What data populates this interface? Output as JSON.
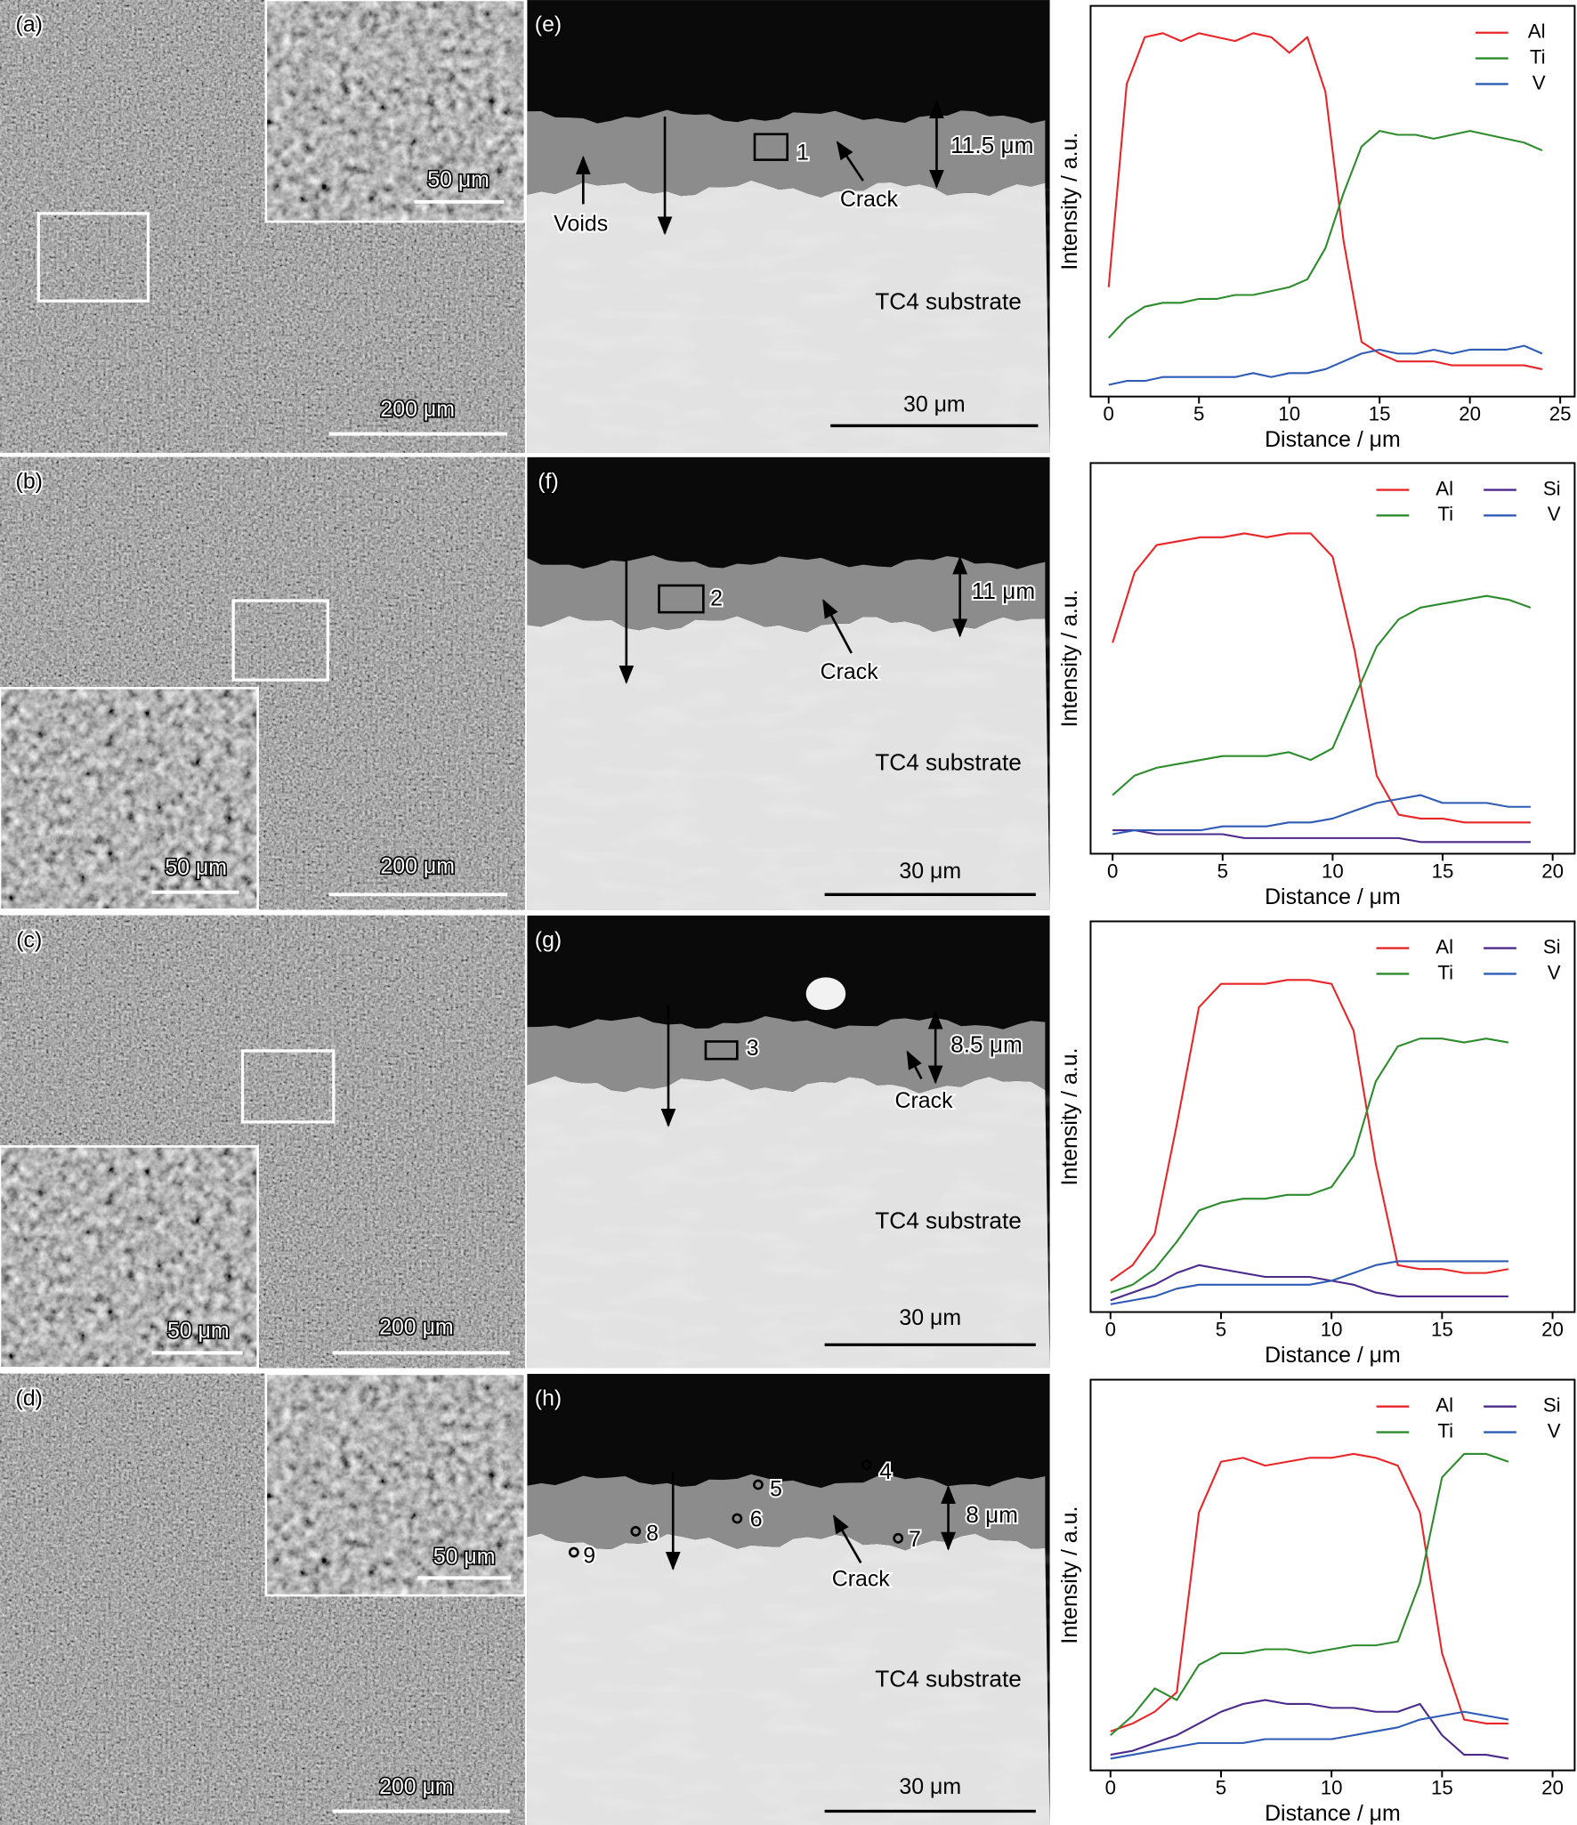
{
  "chart_data": [
    {
      "type": "line",
      "x_label": "Distance / μm",
      "y_label": "Intensity / a.u.",
      "xlim": [
        -1,
        25.8
      ],
      "xticks": [
        0,
        5,
        10,
        15,
        20,
        25
      ],
      "ylim": [
        0,
        100
      ],
      "legend": "upper right",
      "x": [
        0,
        1,
        2,
        3,
        4,
        5,
        6,
        7,
        8,
        9,
        10,
        11,
        12,
        13,
        14,
        15,
        16,
        17,
        18,
        19,
        20,
        21,
        22,
        23,
        24
      ],
      "series": [
        {
          "name": "Al",
          "color": "#e8262a",
          "values": [
            28,
            80,
            92,
            93,
            91,
            93,
            92,
            91,
            93,
            92,
            88,
            92,
            78,
            40,
            14,
            11,
            9,
            9,
            9,
            8,
            8,
            8,
            8,
            8,
            7
          ]
        },
        {
          "name": "Ti",
          "color": "#2e8b2e",
          "values": [
            15,
            20,
            23,
            24,
            24,
            25,
            25,
            26,
            26,
            27,
            28,
            30,
            38,
            52,
            64,
            68,
            67,
            67,
            66,
            67,
            68,
            67,
            66,
            65,
            63
          ]
        },
        {
          "name": "V",
          "color": "#2f5bb5",
          "values": [
            3,
            4,
            4,
            5,
            5,
            5,
            5,
            5,
            6,
            5,
            6,
            6,
            7,
            9,
            11,
            12,
            11,
            11,
            12,
            11,
            12,
            12,
            12,
            13,
            11
          ]
        }
      ]
    },
    {
      "type": "line",
      "x_label": "Distance / μm",
      "y_label": "Intensity / a.u.",
      "xlim": [
        -1,
        21
      ],
      "xticks": [
        0,
        5,
        10,
        15,
        20
      ],
      "ylim": [
        0,
        100
      ],
      "legend": "upper right",
      "x": [
        0,
        1,
        2,
        3,
        4,
        5,
        6,
        7,
        8,
        9,
        10,
        11,
        12,
        13,
        14,
        15,
        16,
        17,
        18,
        19
      ],
      "series": [
        {
          "name": "Al",
          "color": "#e8262a",
          "values": [
            54,
            72,
            79,
            80,
            81,
            81,
            82,
            81,
            82,
            82,
            76,
            52,
            20,
            10,
            9,
            9,
            8,
            8,
            8,
            8
          ]
        },
        {
          "name": "Ti",
          "color": "#2e8b2e",
          "values": [
            15,
            20,
            22,
            23,
            24,
            25,
            25,
            25,
            26,
            24,
            27,
            40,
            53,
            60,
            63,
            64,
            65,
            66,
            65,
            63
          ]
        },
        {
          "name": "Si",
          "color": "#4b2a8c",
          "values": [
            6,
            6,
            5,
            5,
            5,
            5,
            4,
            4,
            4,
            4,
            4,
            4,
            4,
            4,
            3,
            3,
            3,
            3,
            3,
            3
          ]
        },
        {
          "name": "V",
          "color": "#2f5bb5",
          "values": [
            5,
            6,
            6,
            6,
            6,
            7,
            7,
            7,
            8,
            8,
            9,
            11,
            13,
            14,
            15,
            13,
            13,
            13,
            12,
            12
          ]
        }
      ]
    },
    {
      "type": "line",
      "x_label": "Distance / μm",
      "y_label": "Intensity / a.u.",
      "xlim": [
        -0.9,
        21
      ],
      "xticks": [
        0,
        5,
        10,
        15,
        20
      ],
      "ylim": [
        0,
        100
      ],
      "legend": "upper right",
      "x": [
        0,
        1,
        2,
        3,
        4,
        5,
        6,
        7,
        8,
        9,
        10,
        11,
        12,
        13,
        14,
        15,
        16,
        17,
        18
      ],
      "series": [
        {
          "name": "Al",
          "color": "#e8262a",
          "values": [
            8,
            12,
            20,
            48,
            78,
            84,
            84,
            84,
            85,
            85,
            84,
            72,
            38,
            12,
            11,
            11,
            10,
            10,
            11
          ]
        },
        {
          "name": "Ti",
          "color": "#2e8b2e",
          "values": [
            5,
            7,
            11,
            18,
            26,
            28,
            29,
            29,
            30,
            30,
            32,
            40,
            59,
            68,
            70,
            70,
            69,
            70,
            69
          ]
        },
        {
          "name": "Si",
          "color": "#4b2a8c",
          "values": [
            3,
            5,
            7,
            10,
            12,
            11,
            10,
            9,
            9,
            9,
            8,
            7,
            5,
            4,
            4,
            4,
            4,
            4,
            4
          ]
        },
        {
          "name": "V",
          "color": "#2f5bb5",
          "values": [
            2,
            3,
            4,
            6,
            7,
            7,
            7,
            7,
            7,
            7,
            8,
            10,
            12,
            13,
            13,
            13,
            13,
            13,
            13
          ]
        }
      ]
    },
    {
      "type": "line",
      "x_label": "Distance / μm",
      "y_label": "Intensity / a.u.",
      "xlim": [
        -0.9,
        21
      ],
      "xticks": [
        0,
        5,
        10,
        15,
        20
      ],
      "ylim": [
        0,
        100
      ],
      "legend": "upper right",
      "x": [
        0,
        1,
        2,
        3,
        4,
        5,
        6,
        7,
        8,
        9,
        10,
        11,
        12,
        13,
        14,
        15,
        16,
        17,
        18
      ],
      "series": [
        {
          "name": "Al",
          "color": "#e8262a",
          "values": [
            10,
            12,
            15,
            20,
            66,
            79,
            80,
            78,
            79,
            80,
            80,
            81,
            80,
            78,
            66,
            30,
            13,
            12,
            12
          ]
        },
        {
          "name": "Ti",
          "color": "#2e8b2e",
          "values": [
            9,
            14,
            21,
            18,
            27,
            30,
            30,
            31,
            31,
            30,
            31,
            32,
            32,
            33,
            48,
            75,
            81,
            81,
            79
          ]
        },
        {
          "name": "Si",
          "color": "#4b2a8c",
          "values": [
            4,
            5,
            7,
            9,
            12,
            15,
            17,
            18,
            17,
            17,
            16,
            16,
            15,
            15,
            17,
            9,
            4,
            4,
            3
          ]
        },
        {
          "name": "V",
          "color": "#2f5bb5",
          "values": [
            3,
            4,
            5,
            6,
            7,
            7,
            7,
            8,
            8,
            8,
            8,
            9,
            10,
            11,
            13,
            14,
            15,
            14,
            13
          ]
        }
      ]
    }
  ],
  "sem_panels": [
    {
      "label": "(a)",
      "scale_bar": "200 μm",
      "inset_scale_bar": "50 μm"
    },
    {
      "label": "(b)",
      "scale_bar": "200 μm",
      "inset_scale_bar": "50 μm"
    },
    {
      "label": "(c)",
      "scale_bar": "200 μm",
      "inset_scale_bar": "50 μm"
    },
    {
      "label": "(d)",
      "scale_bar": "200 μm",
      "inset_scale_bar": "50 μm"
    }
  ],
  "cross_sections": [
    {
      "label": "(e)",
      "thickness": "11.5 μm",
      "crack": "Crack",
      "voids": "Voids",
      "substrate": "TC4 substrate",
      "scale_bar": "30 μm",
      "points": [
        "1"
      ]
    },
    {
      "label": "(f)",
      "thickness": "11 μm",
      "crack": "Crack",
      "substrate": "TC4 substrate",
      "scale_bar": "30 μm",
      "points": [
        "2"
      ]
    },
    {
      "label": "(g)",
      "thickness": "8.5 μm",
      "crack": "Crack",
      "substrate": "TC4 substrate",
      "scale_bar": "30 μm",
      "points": [
        "3"
      ]
    },
    {
      "label": "(h)",
      "thickness": "8 μm",
      "crack": "Crack",
      "substrate": "TC4 substrate",
      "scale_bar": "30 μm",
      "points": [
        "4",
        "5",
        "6",
        "7",
        "8",
        "9"
      ]
    }
  ]
}
